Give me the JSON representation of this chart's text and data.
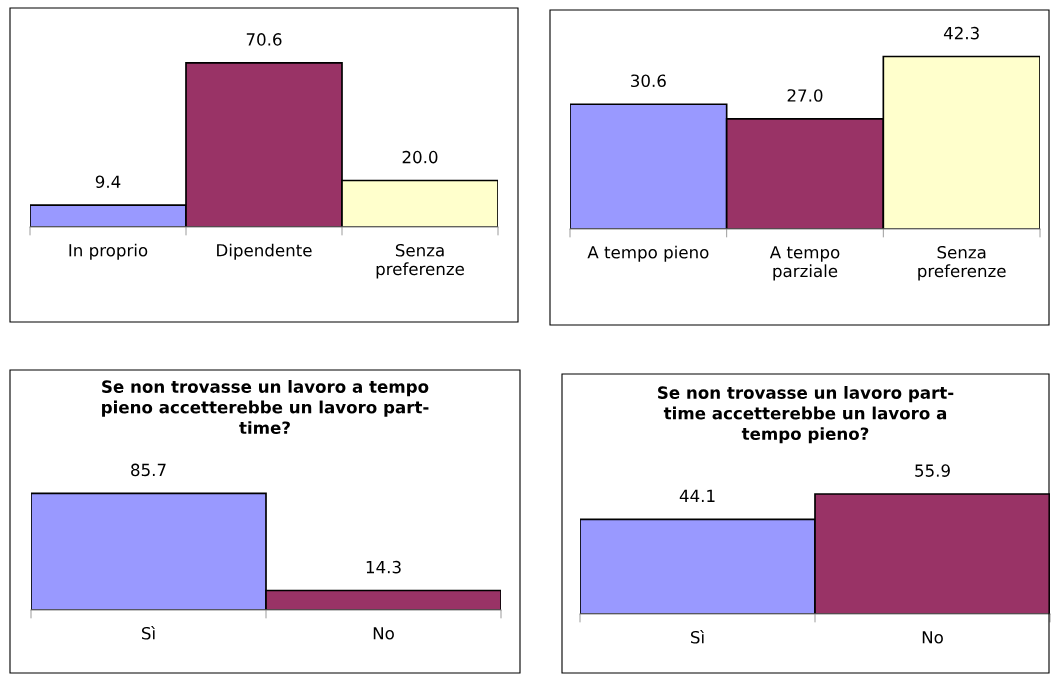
{
  "chart_data": [
    {
      "type": "bar",
      "categories": [
        "In proprio",
        "Dipendente",
        "Senza\npreferenze"
      ],
      "values": [
        9.4,
        70.6,
        20.0
      ],
      "colors": [
        "#9999ff",
        "#993366",
        "#ffffcc"
      ],
      "value_labels": [
        "9.4",
        "70.6",
        "20.0"
      ],
      "tick_labels": "x",
      "grid": false,
      "legend": false
    },
    {
      "type": "bar",
      "categories": [
        "A tempo pieno",
        "A tempo\nparziale",
        "Senza\npreferenze"
      ],
      "values": [
        30.6,
        27.0,
        42.3
      ],
      "colors": [
        "#9999ff",
        "#993366",
        "#ffffcc"
      ],
      "value_labels": [
        "30.6",
        "27.0",
        "42.3"
      ],
      "tick_labels": "x",
      "grid": false,
      "legend": false
    },
    {
      "type": "bar",
      "title": "Se non trovasse un lavoro a tempo\npieno accetterebbe un lavoro part-\ntime?",
      "categories": [
        "Sì",
        "No"
      ],
      "values": [
        85.7,
        14.3
      ],
      "colors": [
        "#9999ff",
        "#993366"
      ],
      "value_labels": [
        "85.7",
        "14.3"
      ],
      "tick_labels": "x",
      "grid": false,
      "legend": false
    },
    {
      "type": "bar",
      "title": "Se non trovasse un lavoro part-\ntime accetterebbe un lavoro a\ntempo pieno?",
      "categories": [
        "Sì",
        "No"
      ],
      "values": [
        44.1,
        55.9
      ],
      "colors": [
        "#9999ff",
        "#993366"
      ],
      "value_labels": [
        "44.1",
        "55.9"
      ],
      "tick_labels": "x",
      "grid": false,
      "legend": false
    }
  ]
}
